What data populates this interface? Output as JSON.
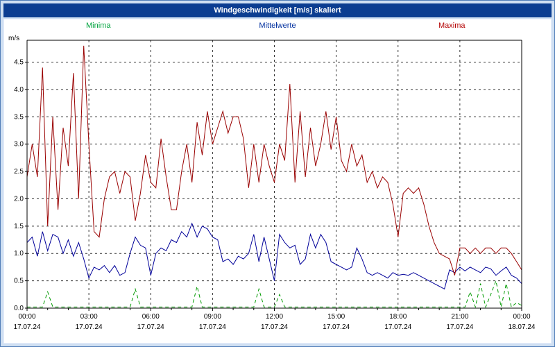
{
  "window": {
    "title": "Windgeschwindigkeit [m/s] skaliert"
  },
  "legend": [
    {
      "label": "Minima",
      "color": "#00a33e"
    },
    {
      "label": "Mittelwerte",
      "color": "#002f9e"
    },
    {
      "label": "Maxima",
      "color": "#b30000"
    }
  ],
  "colors": {
    "title_bar": "#0b3d91",
    "frame_background": "#cfdff2",
    "plot_background": "#ffffff",
    "grid": "#333333",
    "axis": "#000000"
  },
  "chart_data": {
    "type": "line",
    "title": "Windgeschwindigkeit [m/s] skaliert",
    "ylabel": "m/s",
    "xlabel": "",
    "ylim": [
      0,
      4.9
    ],
    "ytick_step": 0.5,
    "y_tick_labels": [
      "0.0",
      "0.5",
      "1.0",
      "1.5",
      "2.0",
      "2.5",
      "3.0",
      "3.5",
      "4.0",
      "4.5"
    ],
    "x_hours_range": [
      0,
      24
    ],
    "x_tick_hours": [
      0,
      3,
      6,
      9,
      12,
      15,
      18,
      21,
      24
    ],
    "x_tick_labels": [
      "00:00",
      "03:00",
      "06:00",
      "09:00",
      "12:00",
      "15:00",
      "18:00",
      "21:00",
      "00:00"
    ],
    "x_date_labels": [
      "17.07.24",
      "17.07.24",
      "17.07.24",
      "17.07.24",
      "17.07.24",
      "17.07.24",
      "17.07.24",
      "17.07.24",
      "18.07.24"
    ],
    "sample_interval_hours": 0.25,
    "grid": "dashed",
    "legend_position": "top",
    "series": [
      {
        "name": "Minima",
        "color": "#009a00",
        "dashed": true,
        "values": [
          0.02,
          0.02,
          0.02,
          0.02,
          0.3,
          0.02,
          0.02,
          0.02,
          0.02,
          0.02,
          0.02,
          0.02,
          0.02,
          0.02,
          0.02,
          0.02,
          0.02,
          0.02,
          0.02,
          0.02,
          0.02,
          0.35,
          0.02,
          0.02,
          0.02,
          0.02,
          0.02,
          0.02,
          0.02,
          0.02,
          0.02,
          0.02,
          0.02,
          0.4,
          0.02,
          0.02,
          0.02,
          0.02,
          0.02,
          0.02,
          0.02,
          0.02,
          0.02,
          0.02,
          0.02,
          0.35,
          0.02,
          0.02,
          0.02,
          0.25,
          0.02,
          0.02,
          0.02,
          0.02,
          0.02,
          0.02,
          0.02,
          0.02,
          0.02,
          0.02,
          0.02,
          0.02,
          0.02,
          0.02,
          0.02,
          0.02,
          0.02,
          0.02,
          0.02,
          0.02,
          0.02,
          0.02,
          0.02,
          0.02,
          0.02,
          0.02,
          0.02,
          0.02,
          0.02,
          0.02,
          0.02,
          0.02,
          0.02,
          0.02,
          0.02,
          0.02,
          0.3,
          0.02,
          0.45,
          0.02,
          0.25,
          0.5,
          0.02,
          0.45,
          0.02,
          0.1,
          0.05
        ]
      },
      {
        "name": "Mittelwerte",
        "color": "#000099",
        "dashed": false,
        "values": [
          1.2,
          1.3,
          0.95,
          1.4,
          1.05,
          1.35,
          1.3,
          1.0,
          1.25,
          0.95,
          1.2,
          0.9,
          0.55,
          0.75,
          0.7,
          0.78,
          0.65,
          0.78,
          0.6,
          0.65,
          1.0,
          1.3,
          1.15,
          1.1,
          0.6,
          1.0,
          1.1,
          1.05,
          1.25,
          1.2,
          1.4,
          1.3,
          1.55,
          1.3,
          1.5,
          1.45,
          1.3,
          1.25,
          0.85,
          0.9,
          0.8,
          0.95,
          0.9,
          1.0,
          1.35,
          0.85,
          1.3,
          0.9,
          0.5,
          1.35,
          1.2,
          1.1,
          1.15,
          0.8,
          0.9,
          1.35,
          1.1,
          1.35,
          1.2,
          0.85,
          0.8,
          0.75,
          0.7,
          0.75,
          1.1,
          0.9,
          0.65,
          0.6,
          0.65,
          0.6,
          0.55,
          0.65,
          0.6,
          0.62,
          0.6,
          0.65,
          0.6,
          0.55,
          0.5,
          0.45,
          0.4,
          0.35,
          0.7,
          0.65,
          0.75,
          0.68,
          0.75,
          0.7,
          0.65,
          0.75,
          0.72,
          0.6,
          0.68,
          0.75,
          0.6,
          0.55,
          0.45
        ]
      },
      {
        "name": "Maxima",
        "color": "#990000",
        "dashed": false,
        "values": [
          2.4,
          3.0,
          2.4,
          4.4,
          1.5,
          3.5,
          1.8,
          3.3,
          2.6,
          4.3,
          2.0,
          4.8,
          3.0,
          1.4,
          1.3,
          2.0,
          2.4,
          2.5,
          2.1,
          2.5,
          2.4,
          1.6,
          2.1,
          2.8,
          2.3,
          2.2,
          3.1,
          2.4,
          1.8,
          1.8,
          2.5,
          3.0,
          2.3,
          3.4,
          2.8,
          3.6,
          3.0,
          3.3,
          3.6,
          3.2,
          3.5,
          3.5,
          3.1,
          2.2,
          3.0,
          2.3,
          3.0,
          2.6,
          2.3,
          3.0,
          2.7,
          4.1,
          2.3,
          3.6,
          2.4,
          3.3,
          2.6,
          3.0,
          3.6,
          2.9,
          3.5,
          2.7,
          2.5,
          3.0,
          2.6,
          2.8,
          2.3,
          2.5,
          2.2,
          2.4,
          2.3,
          1.9,
          1.3,
          2.1,
          2.2,
          2.1,
          2.2,
          1.9,
          1.5,
          1.2,
          1.0,
          0.95,
          0.9,
          0.6,
          1.1,
          1.1,
          1.0,
          1.1,
          1.0,
          1.1,
          1.1,
          1.0,
          1.1,
          1.1,
          1.0,
          0.85,
          0.7
        ]
      }
    ]
  }
}
